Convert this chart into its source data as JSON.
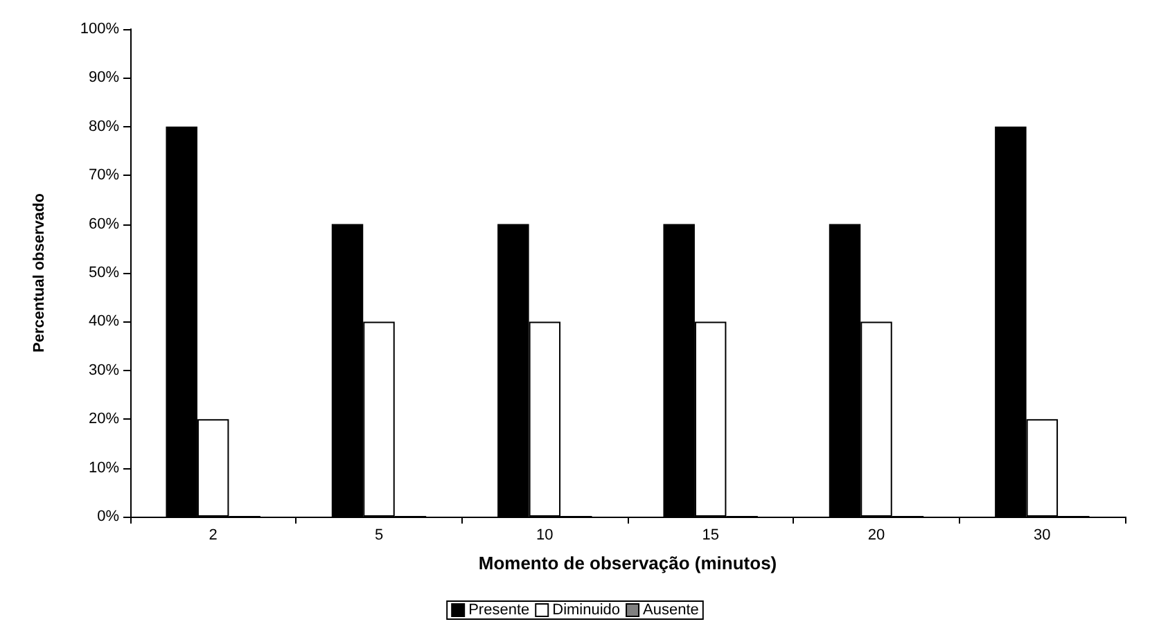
{
  "chart_data": {
    "type": "bar",
    "xlabel": "Momento de observação (minutos)",
    "ylabel": "Percentual observado",
    "categories": [
      "2",
      "5",
      "10",
      "15",
      "20",
      "30"
    ],
    "series": [
      {
        "name": "Presente",
        "color": "#000000",
        "values": [
          80,
          60,
          60,
          60,
          60,
          80
        ]
      },
      {
        "name": "Diminuido",
        "color": "#ffffff",
        "values": [
          20,
          40,
          40,
          40,
          40,
          20
        ]
      },
      {
        "name": "Ausente",
        "color": "#808080",
        "values": [
          0,
          0,
          0,
          0,
          0,
          0
        ]
      }
    ],
    "ylim": [
      0,
      100
    ],
    "yticks": [
      {
        "value": 0,
        "label": "0%"
      },
      {
        "value": 10,
        "label": "10%"
      },
      {
        "value": 20,
        "label": "20%"
      },
      {
        "value": 30,
        "label": "30%"
      },
      {
        "value": 40,
        "label": "40%"
      },
      {
        "value": 50,
        "label": "50%"
      },
      {
        "value": 60,
        "label": "60%"
      },
      {
        "value": 70,
        "label": "70%"
      },
      {
        "value": 80,
        "label": "80%"
      },
      {
        "value": 90,
        "label": "90%"
      },
      {
        "value": 100,
        "label": "100%"
      }
    ],
    "grid": false,
    "legend": "bottom"
  }
}
